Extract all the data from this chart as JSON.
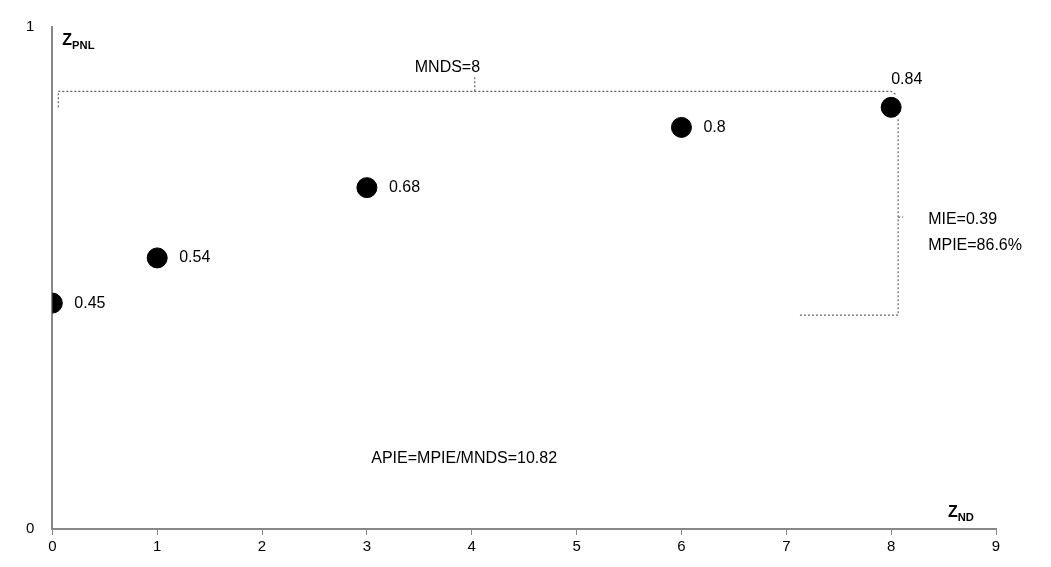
{
  "chart_data": {
    "type": "scatter",
    "xlabel": "Z$_{ND}$",
    "ylabel": "Z$_{PNL}$",
    "x": [
      0,
      1,
      3,
      6,
      8
    ],
    "series": [
      {
        "color": "#000000",
        "values": [
          0.45,
          0.54,
          0.68,
          0.8,
          0.84
        ]
      }
    ],
    "xlim": [
      0,
      9
    ],
    "xticks": [
      0,
      1,
      2,
      3,
      4,
      5,
      6,
      7,
      8,
      9
    ],
    "ylim": [
      0,
      1
    ],
    "yticks": [
      0,
      1
    ],
    "grid": false,
    "legend": false,
    "marker": "circle",
    "data_labels": true,
    "annotations": [
      "MNDS=8",
      "MIE=0.39",
      "MPIE=86.6%",
      "APIE=MPIE/MNDS=10.82"
    ]
  }
}
